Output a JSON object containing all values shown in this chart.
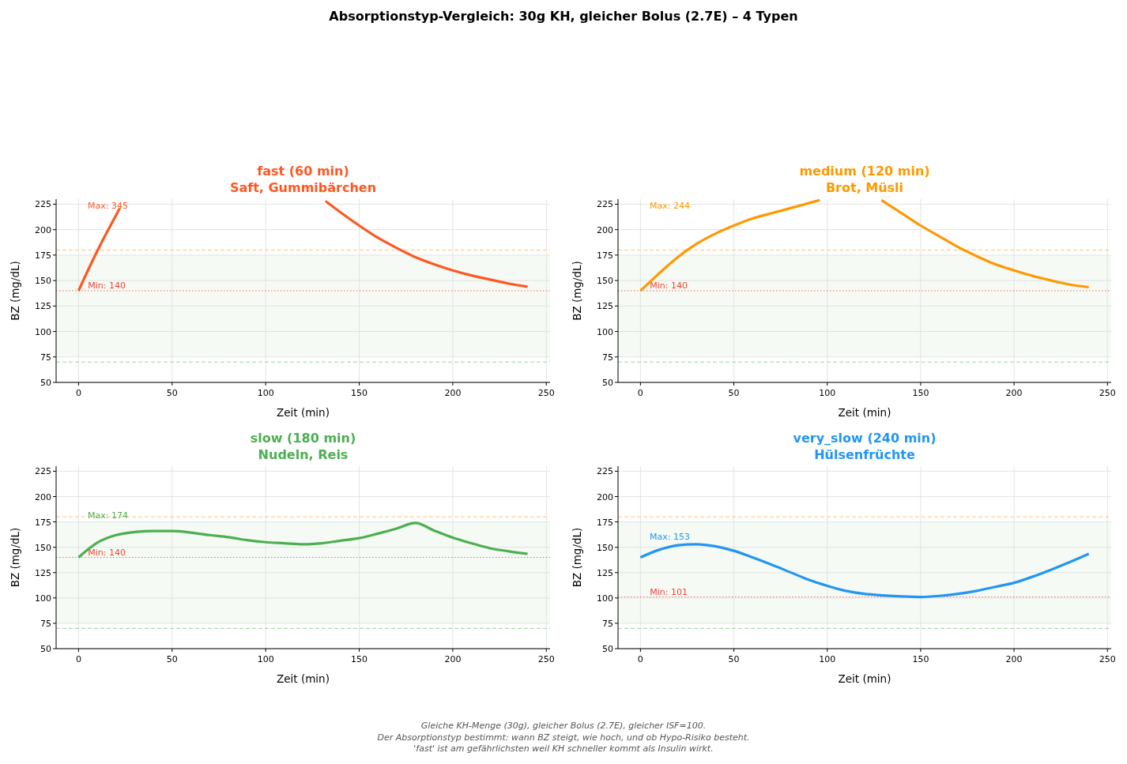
{
  "chart_data": [
    {
      "type": "other",
      "title": "Absorptionstyp-Vergleich: 30g KH, gleicher Bolus (2.7E) – 4 Typen",
      "annotations": [
        "Gleiche KH-Menge (30g), gleicher Bolus (2.7E), gleicher ISF=100.",
        "Der Absorptionstyp bestimmt: wann BZ steigt, wie hoch, und ob Hypo-Risiko besteht.",
        "'fast' ist am gefährlichsten weil KH schneller kommt als Insulin wirkt."
      ]
    },
    {
      "type": "line",
      "title": "fast (60 min)",
      "subtitle": "Saft, Gummibärchen",
      "xlabel": "Zeit (min)",
      "ylabel": "BZ (mg/dL)",
      "series": [
        {
          "color": "#ff5722",
          "x": [
            0,
            5,
            10,
            15,
            20,
            22,
            60,
            132,
            140,
            150,
            160,
            170,
            180,
            190,
            200,
            210,
            220,
            230,
            240
          ],
          "values": [
            140,
            160,
            179,
            197,
            214,
            221,
            null,
            228,
            217,
            204,
            192,
            182,
            173,
            166,
            160,
            155,
            151,
            147,
            144
          ]
        }
      ],
      "xlim": [
        -12,
        252
      ],
      "ylim": [
        50,
        230
      ],
      "xticks": [
        0,
        50,
        100,
        150,
        200,
        250
      ],
      "yticks": [
        50,
        75,
        100,
        125,
        150,
        175,
        200,
        225
      ],
      "grid": true,
      "bands": [
        {
          "axis": "y",
          "from": 75,
          "to": 175,
          "color": "#e8f5e9"
        }
      ],
      "ref_lines": [
        {
          "axis": "y",
          "value": 180,
          "color": "#ffb74d",
          "line_style": "dashed"
        },
        {
          "axis": "y",
          "value": 70,
          "color": "#81c784",
          "line_style": "dashed"
        },
        {
          "axis": "y",
          "value": 140,
          "label": "Min: 140",
          "color": "#f44336",
          "line_style": "dotted"
        }
      ],
      "annotations": [
        "Max: 345"
      ]
    },
    {
      "type": "line",
      "title": "medium (120 min)",
      "subtitle": "Brot, Müsli",
      "xlabel": "Zeit (min)",
      "ylabel": "BZ (mg/dL)",
      "series": [
        {
          "color": "#ff9800",
          "x": [
            0,
            10,
            20,
            30,
            40,
            50,
            60,
            70,
            80,
            90,
            96,
            110,
            129,
            140,
            150,
            160,
            170,
            180,
            190,
            200,
            210,
            220,
            230,
            240
          ],
          "values": [
            140,
            157,
            173,
            186,
            196,
            204,
            211,
            216,
            221,
            226,
            229,
            null,
            229,
            216,
            204,
            193.5,
            183,
            174,
            166,
            160,
            154.5,
            150,
            146,
            143.5
          ]
        }
      ],
      "xlim": [
        -12,
        252
      ],
      "ylim": [
        50,
        230
      ],
      "xticks": [
        0,
        50,
        100,
        150,
        200,
        250
      ],
      "yticks": [
        50,
        75,
        100,
        125,
        150,
        175,
        200,
        225
      ],
      "grid": true,
      "bands": [
        {
          "axis": "y",
          "from": 75,
          "to": 175,
          "color": "#e8f5e9"
        }
      ],
      "ref_lines": [
        {
          "axis": "y",
          "value": 180,
          "color": "#ffb74d",
          "line_style": "dashed"
        },
        {
          "axis": "y",
          "value": 70,
          "color": "#81c784",
          "line_style": "dashed"
        },
        {
          "axis": "y",
          "value": 140,
          "label": "Min: 140",
          "color": "#f44336",
          "line_style": "dotted"
        }
      ],
      "annotations": [
        "Max: 244"
      ]
    },
    {
      "type": "line",
      "title": "slow (180 min)",
      "subtitle": "Nudeln, Reis",
      "xlabel": "Zeit (min)",
      "ylabel": "BZ (mg/dL)",
      "series": [
        {
          "color": "#4caf50",
          "x": [
            0,
            10,
            20,
            30,
            40,
            50,
            60,
            70,
            80,
            90,
            100,
            110,
            120,
            130,
            140,
            150,
            160,
            170,
            180,
            190,
            200,
            210,
            220,
            230,
            240
          ],
          "values": [
            140,
            154.5,
            162,
            165,
            166,
            166,
            164.5,
            162,
            160,
            157,
            155,
            154,
            153,
            154,
            156.5,
            159,
            163.5,
            168.5,
            174,
            166.5,
            159.5,
            154,
            149,
            146,
            143.5
          ]
        }
      ],
      "xlim": [
        -12,
        252
      ],
      "ylim": [
        50,
        230
      ],
      "xticks": [
        0,
        50,
        100,
        150,
        200,
        250
      ],
      "yticks": [
        50,
        75,
        100,
        125,
        150,
        175,
        200,
        225
      ],
      "grid": true,
      "bands": [
        {
          "axis": "y",
          "from": 75,
          "to": 175,
          "color": "#e8f5e9"
        }
      ],
      "ref_lines": [
        {
          "axis": "y",
          "value": 180,
          "color": "#ffb74d",
          "line_style": "dashed"
        },
        {
          "axis": "y",
          "value": 70,
          "color": "#81c784",
          "line_style": "dashed"
        },
        {
          "axis": "y",
          "value": 140,
          "label": "Min: 140",
          "color": "#f44336",
          "line_style": "dotted"
        }
      ],
      "annotations": [
        "Max: 174"
      ]
    },
    {
      "type": "line",
      "title": "very_slow (240 min)",
      "subtitle": "Hülsenfrüchte",
      "xlabel": "Zeit (min)",
      "ylabel": "BZ (mg/dL)",
      "series": [
        {
          "color": "#2196f3",
          "x": [
            0,
            10,
            20,
            30,
            40,
            50,
            60,
            70,
            80,
            90,
            100,
            110,
            120,
            130,
            140,
            150,
            160,
            170,
            180,
            190,
            200,
            210,
            220,
            230,
            240
          ],
          "values": [
            140,
            147.5,
            152,
            153,
            151,
            146.5,
            140,
            133,
            125.5,
            118,
            112,
            107,
            104,
            102.5,
            101.5,
            101,
            102,
            104,
            107,
            111,
            115,
            121,
            128,
            135.5,
            143.5
          ]
        }
      ],
      "xlim": [
        -12,
        252
      ],
      "ylim": [
        50,
        230
      ],
      "xticks": [
        0,
        50,
        100,
        150,
        200,
        250
      ],
      "yticks": [
        50,
        75,
        100,
        125,
        150,
        175,
        200,
        225
      ],
      "grid": true,
      "bands": [
        {
          "axis": "y",
          "from": 75,
          "to": 175,
          "color": "#e8f5e9"
        }
      ],
      "ref_lines": [
        {
          "axis": "y",
          "value": 180,
          "color": "#ffb74d",
          "line_style": "dashed"
        },
        {
          "axis": "y",
          "value": 70,
          "color": "#81c784",
          "line_style": "dashed"
        },
        {
          "axis": "y",
          "value": 101,
          "label": "Min: 101",
          "color": "#f44336",
          "line_style": "dotted"
        }
      ],
      "annotations": [
        "Max: 153"
      ]
    }
  ]
}
